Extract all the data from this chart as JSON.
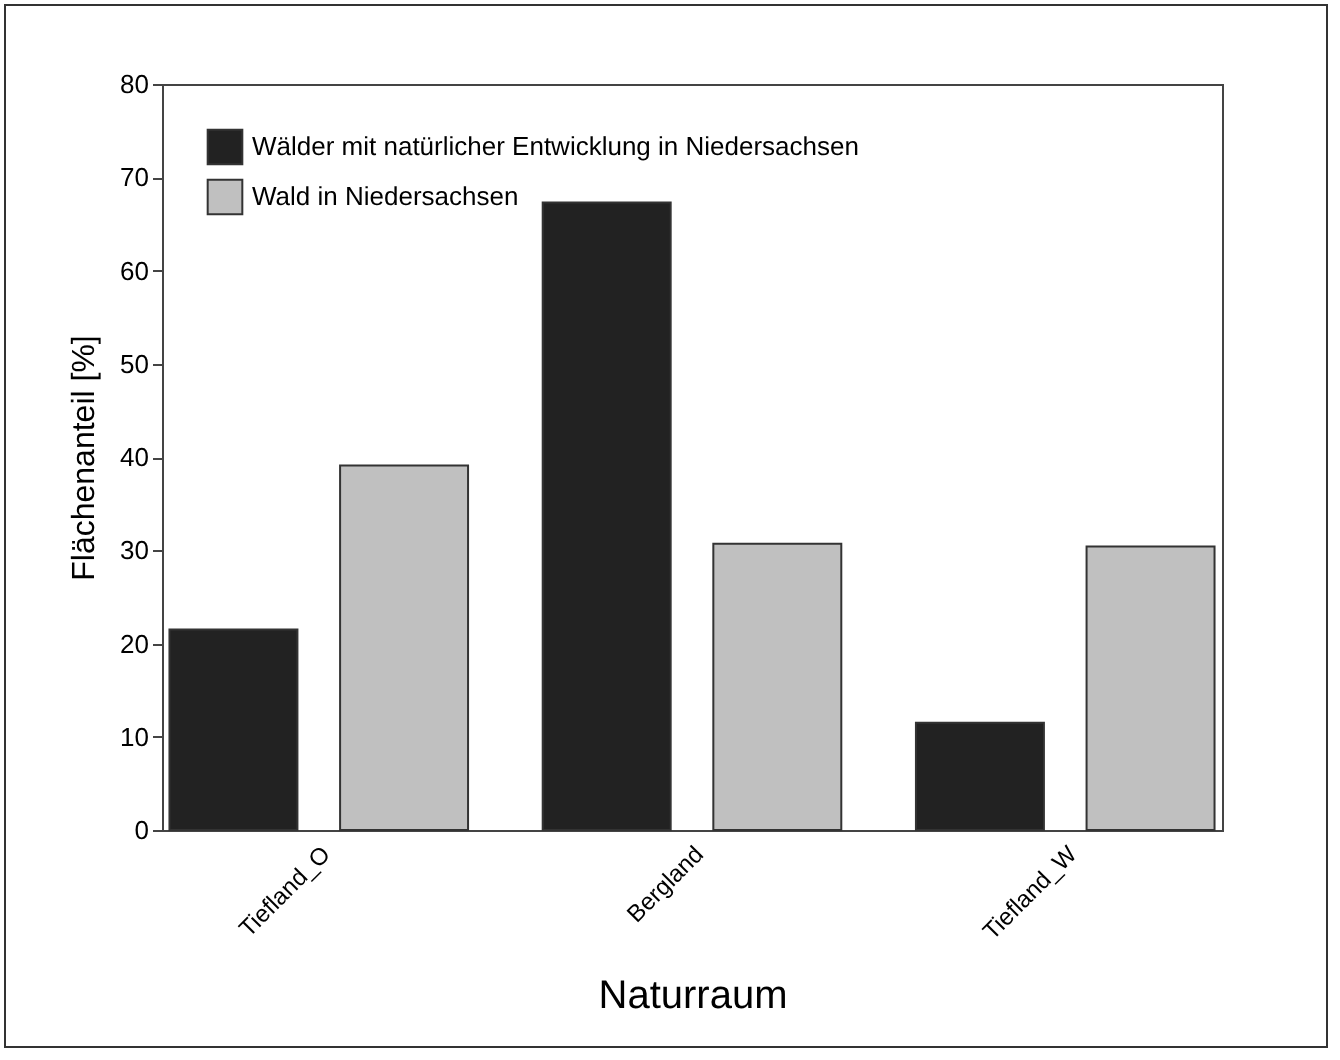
{
  "chart_data": {
    "type": "bar",
    "xlabel": "Naturraum",
    "ylabel": "Flächenanteil [%]",
    "categories": [
      "Tiefland_O",
      "Bergland",
      "Tiefland_W"
    ],
    "series": [
      {
        "name": "Wälder mit natürlicher Entwicklung in Niedersachsen",
        "color": "#222222",
        "values": [
          21.5,
          67.3,
          11.5
        ]
      },
      {
        "name": "Wald in Niedersachsen",
        "color": "#c0c0c0",
        "values": [
          39.1,
          30.7,
          30.4
        ]
      }
    ],
    "ylim": [
      0,
      80
    ],
    "yticks": [
      0,
      10,
      20,
      30,
      40,
      50,
      60,
      70,
      80
    ],
    "grid": false,
    "legend": "top left"
  }
}
